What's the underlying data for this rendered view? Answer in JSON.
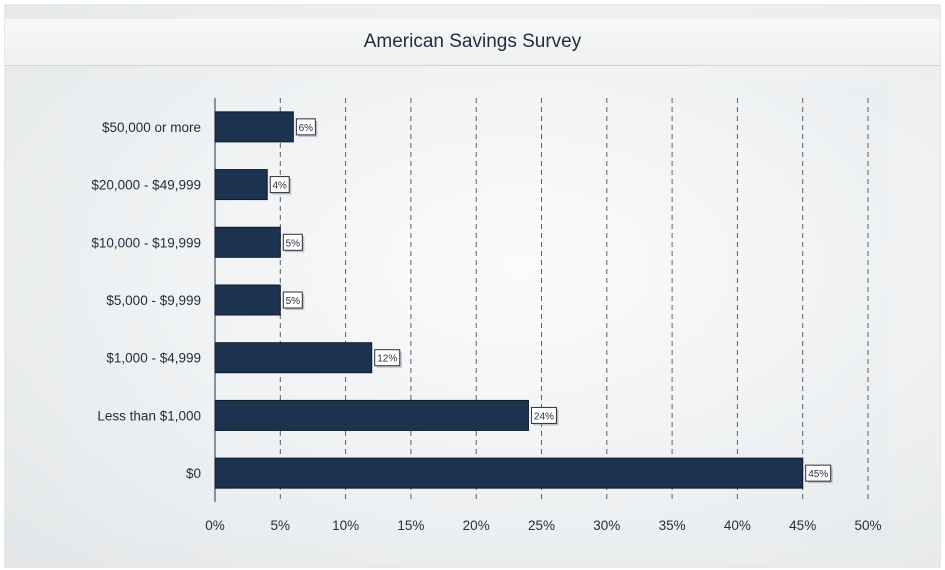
{
  "title": "American Savings Survey",
  "chart_data": {
    "type": "bar",
    "orientation": "horizontal",
    "title": "American Savings Survey",
    "categories": [
      "$50,000 or more",
      "$20,000 - $49,999",
      "$10,000 - $19,999",
      "$5,000 - $9,999",
      "$1,000 - $4,999",
      "Less than $1,000",
      "$0"
    ],
    "values": [
      6,
      4,
      5,
      5,
      12,
      24,
      45
    ],
    "data_labels": [
      "6%",
      "4%",
      "5%",
      "5%",
      "12%",
      "24%",
      "45%"
    ],
    "xlim": [
      0,
      50
    ],
    "x_ticks": [
      0,
      5,
      10,
      15,
      20,
      25,
      30,
      35,
      40,
      45,
      50
    ],
    "x_tick_labels": [
      "0%",
      "5%",
      "10%",
      "15%",
      "20%",
      "25%",
      "30%",
      "35%",
      "40%",
      "45%",
      "50%"
    ],
    "xlabel": "",
    "ylabel": "",
    "grid": "vertical dashed",
    "bar_color": "#1c3350"
  }
}
